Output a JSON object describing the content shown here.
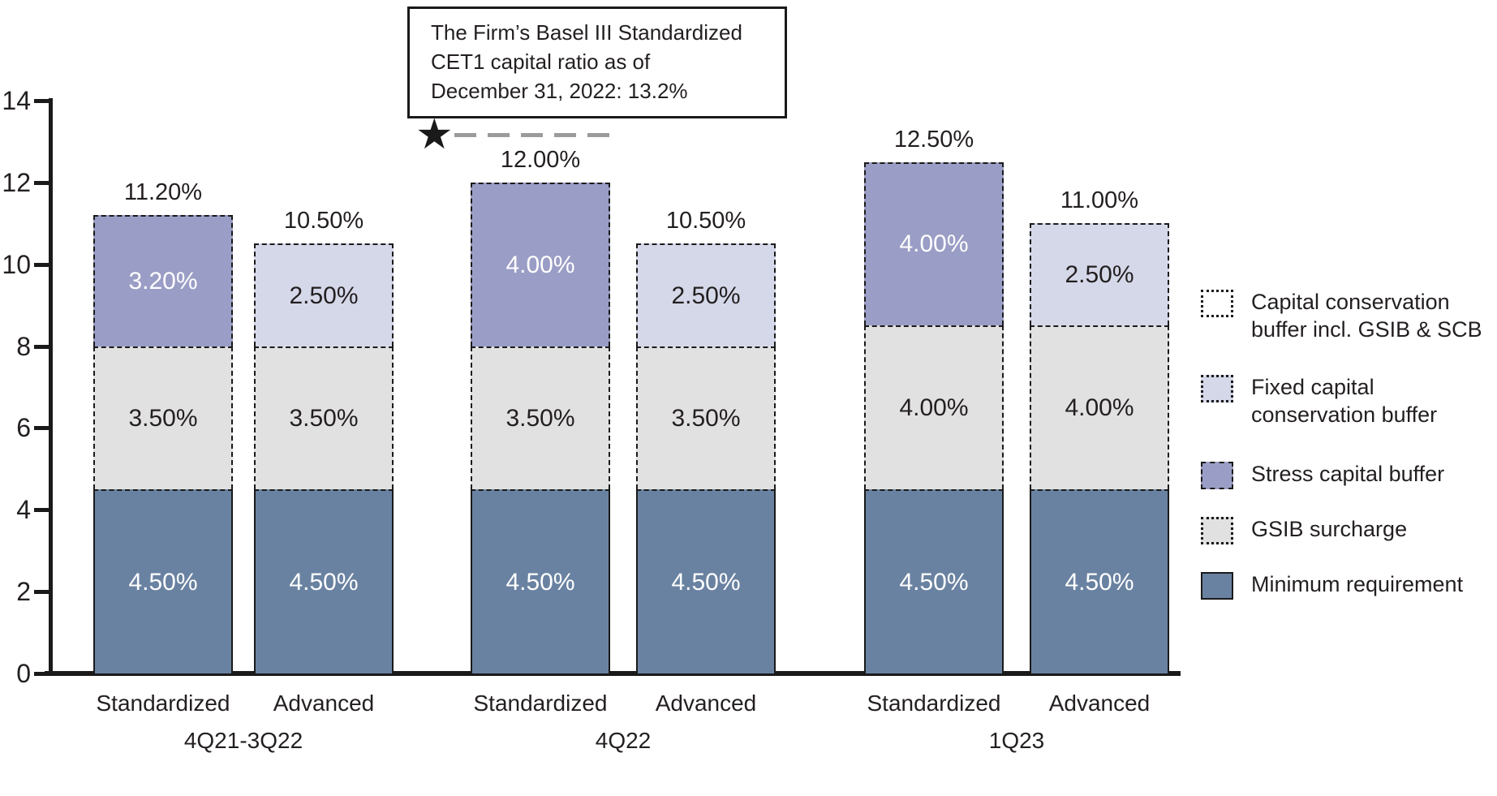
{
  "annotation": {
    "box_text_lines": [
      "The Firm’s Basel III Standardized",
      "CET1 capital ratio as of",
      "December 31, 2022: 13.2%"
    ],
    "marker_value": 13.2,
    "star_glyph": "★"
  },
  "colors": {
    "minimum_requirement": "#6A82A1",
    "gsib_surcharge": "#E2E1E1",
    "stress_capital_buffer": "#9A9DC5",
    "fixed_capital_conservation_buffer": "#D5D8E9",
    "capital_conservation_incl": "#FFFFFF",
    "axis": "#1A1A1A",
    "leader_line": "#9B9B9B",
    "text": "#231F20",
    "segment_text_light": "#FFFFFF"
  },
  "chart_data": {
    "type": "bar",
    "stacked": true,
    "title": "",
    "xlabel": "",
    "ylabel": "",
    "ylim": [
      0,
      14
    ],
    "yticks": [
      0,
      2,
      4,
      6,
      8,
      10,
      12,
      14
    ],
    "grid": false,
    "legend_position": "right",
    "groups": [
      {
        "label": "4Q21-3Q22",
        "bars": [
          {
            "label": "Standardized",
            "total": 11.2,
            "total_label": "11.20%",
            "segments": [
              {
                "name": "Minimum requirement",
                "value": 4.5,
                "label": "4.50%"
              },
              {
                "name": "GSIB surcharge",
                "value": 3.5,
                "label": "3.50%"
              },
              {
                "name": "Stress capital buffer",
                "value": 3.2,
                "label": "3.20%"
              }
            ]
          },
          {
            "label": "Advanced",
            "total": 10.5,
            "total_label": "10.50%",
            "segments": [
              {
                "name": "Minimum requirement",
                "value": 4.5,
                "label": "4.50%"
              },
              {
                "name": "GSIB surcharge",
                "value": 3.5,
                "label": "3.50%"
              },
              {
                "name": "Fixed capital conservation buffer",
                "value": 2.5,
                "label": "2.50%"
              }
            ]
          }
        ]
      },
      {
        "label": "4Q22",
        "bars": [
          {
            "label": "Standardized",
            "total": 12.0,
            "total_label": "12.00%",
            "segments": [
              {
                "name": "Minimum requirement",
                "value": 4.5,
                "label": "4.50%"
              },
              {
                "name": "GSIB surcharge",
                "value": 3.5,
                "label": "3.50%"
              },
              {
                "name": "Stress capital buffer",
                "value": 4.0,
                "label": "4.00%"
              }
            ]
          },
          {
            "label": "Advanced",
            "total": 10.5,
            "total_label": "10.50%",
            "segments": [
              {
                "name": "Minimum requirement",
                "value": 4.5,
                "label": "4.50%"
              },
              {
                "name": "GSIB surcharge",
                "value": 3.5,
                "label": "3.50%"
              },
              {
                "name": "Fixed capital conservation buffer",
                "value": 2.5,
                "label": "2.50%"
              }
            ]
          }
        ]
      },
      {
        "label": "1Q23",
        "bars": [
          {
            "label": "Standardized",
            "total": 12.5,
            "total_label": "12.50%",
            "segments": [
              {
                "name": "Minimum requirement",
                "value": 4.5,
                "label": "4.50%"
              },
              {
                "name": "GSIB surcharge",
                "value": 4.0,
                "label": "4.00%"
              },
              {
                "name": "Stress capital buffer",
                "value": 4.0,
                "label": "4.00%"
              }
            ]
          },
          {
            "label": "Advanced",
            "total": 11.0,
            "total_label": "11.00%",
            "segments": [
              {
                "name": "Minimum requirement",
                "value": 4.5,
                "label": "4.50%"
              },
              {
                "name": "GSIB surcharge",
                "value": 4.0,
                "label": "4.00%"
              },
              {
                "name": "Fixed capital conservation buffer",
                "value": 2.5,
                "label": "2.50%"
              }
            ]
          }
        ]
      }
    ],
    "legend": [
      {
        "lines": [
          "Capital conservation",
          "buffer incl. GSIB & SCB"
        ],
        "color_key": "capital_conservation_incl",
        "border": "dotted"
      },
      {
        "lines": [
          "Fixed capital",
          "conservation buffer"
        ],
        "color_key": "fixed_capital_conservation_buffer",
        "border": "dotted"
      },
      {
        "lines": [
          "Stress capital buffer"
        ],
        "color_key": "stress_capital_buffer",
        "border": "dashed"
      },
      {
        "lines": [
          "GSIB surcharge"
        ],
        "color_key": "gsib_surcharge",
        "border": "dotted"
      },
      {
        "lines": [
          "Minimum requirement"
        ],
        "color_key": "minimum_requirement",
        "border": "solid"
      }
    ]
  }
}
